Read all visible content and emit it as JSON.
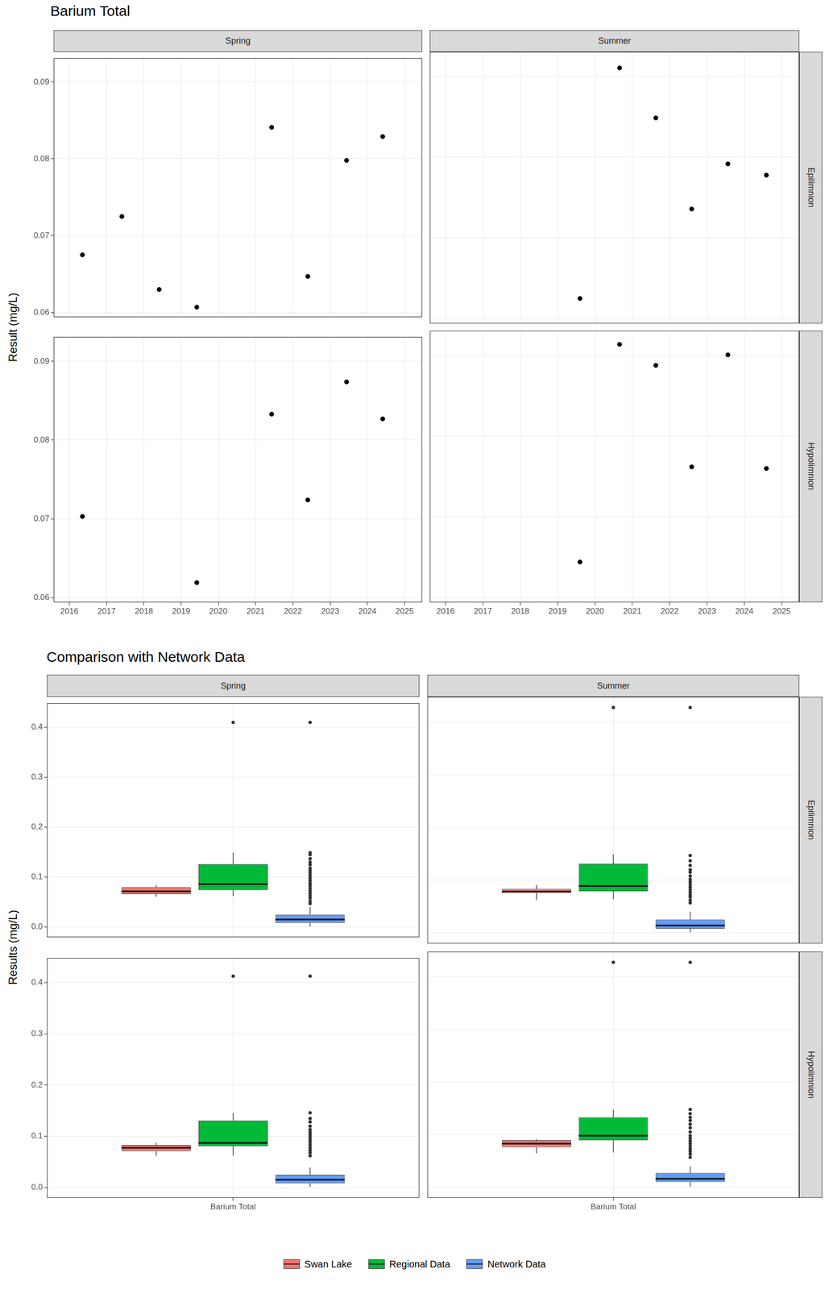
{
  "chart_data": [
    {
      "type": "scatter",
      "title": "Barium Total",
      "y_label": "Result (mg/L)",
      "color": "#000000",
      "grid": true,
      "xlim": [
        2015.58,
        2025.47
      ],
      "xticks": [
        2016,
        2017,
        2018,
        2019,
        2020,
        2021,
        2022,
        2023,
        2024,
        2025
      ],
      "ylim": [
        0.0594,
        0.0931
      ],
      "yticks": [
        0.06,
        0.07,
        0.08,
        0.09
      ],
      "panels": [
        {
          "column": "Spring",
          "row": "Epilimnion",
          "x": [
            2016.35,
            2017.41,
            2018.41,
            2019.42,
            2021.43,
            2022.4,
            2023.44,
            2024.41
          ],
          "values": [
            0.0675,
            0.0725,
            0.063,
            0.0607,
            0.0841,
            0.0647,
            0.0798,
            0.0829
          ]
        },
        {
          "column": "Summer",
          "row": "Epilimnion",
          "x": [
            2019.6,
            2020.66,
            2021.63,
            2022.59,
            2023.56,
            2024.59
          ],
          "values": [
            0.0625,
            0.0911,
            0.0849,
            0.0736,
            0.0792,
            0.0778
          ]
        },
        {
          "column": "Spring",
          "row": "Hypolimnion",
          "x": [
            2016.35,
            2019.42,
            2021.43,
            2022.4,
            2023.44,
            2024.41
          ],
          "values": [
            0.0703,
            0.0619,
            0.0833,
            0.0724,
            0.0874,
            0.0827
          ]
        },
        {
          "column": "Summer",
          "row": "Hypolimnion",
          "x": [
            2019.6,
            2020.66,
            2021.63,
            2022.59,
            2023.56,
            2024.59
          ],
          "values": [
            0.0644,
            0.0914,
            0.0888,
            0.0762,
            0.0901,
            0.076
          ]
        }
      ]
    },
    {
      "type": "boxplot",
      "title": "Comparison with Network Data",
      "y_label": "Results (mg/L)",
      "grid": true,
      "legend": "bottom",
      "categories": [
        "Barium Total"
      ],
      "ylim": [
        -0.0203,
        0.4484
      ],
      "yticks": [
        {
          "value": 0,
          "label": "0.0"
        },
        0.1,
        0.2,
        0.3,
        0.4
      ],
      "panels": [
        {
          "column": "Spring",
          "row": "Epilimnion",
          "series": [
            {
              "name": "Swan Lake",
              "color": "#F8766D",
              "min": 0.0607,
              "q1": 0.066,
              "median": 0.0715,
              "q3": 0.08,
              "max": 0.0841,
              "outliers": []
            },
            {
              "name": "Regional Data",
              "color": "#00BA38",
              "min": 0.062,
              "q1": 0.074,
              "median": 0.086,
              "q3": 0.126,
              "max": 0.149,
              "outliers": [
                0.41
              ]
            },
            {
              "name": "Network Data",
              "color": "#619CFF",
              "min": 0.001,
              "q1": 0.008,
              "median": 0.015,
              "q3": 0.025,
              "max": 0.04,
              "outliers": [
                0.047,
                0.052,
                0.058,
                0.063,
                0.068,
                0.073,
                0.078,
                0.083,
                0.088,
                0.093,
                0.098,
                0.103,
                0.108,
                0.113,
                0.118,
                0.125,
                0.13,
                0.137,
                0.145,
                0.149,
                0.41
              ]
            }
          ]
        },
        {
          "column": "Summer",
          "row": "Epilimnion",
          "series": [
            {
              "name": "Swan Lake",
              "color": "#F8766D",
              "min": 0.0625,
              "q1": 0.076,
              "median": 0.0785,
              "q3": 0.0835,
              "max": 0.0911,
              "outliers": []
            },
            {
              "name": "Regional Data",
              "color": "#00BA38",
              "min": 0.064,
              "q1": 0.079,
              "median": 0.089,
              "q3": 0.131,
              "max": 0.149,
              "outliers": [
                0.428
              ]
            },
            {
              "name": "Network Data",
              "color": "#619CFF",
              "min": 0.001,
              "q1": 0.008,
              "median": 0.014,
              "q3": 0.025,
              "max": 0.04,
              "outliers": [
                0.057,
                0.062,
                0.068,
                0.072,
                0.077,
                0.082,
                0.087,
                0.092,
                0.097,
                0.102,
                0.108,
                0.115,
                0.12,
                0.128,
                0.137,
                0.147,
                0.428
              ]
            }
          ]
        },
        {
          "column": "Spring",
          "row": "Hypolimnion",
          "series": [
            {
              "name": "Swan Lake",
              "color": "#F8766D",
              "min": 0.0619,
              "q1": 0.071,
              "median": 0.0775,
              "q3": 0.083,
              "max": 0.0874,
              "outliers": []
            },
            {
              "name": "Regional Data",
              "color": "#00BA38",
              "min": 0.062,
              "q1": 0.081,
              "median": 0.087,
              "q3": 0.131,
              "max": 0.146,
              "outliers": [
                0.413
              ]
            },
            {
              "name": "Network Data",
              "color": "#619CFF",
              "min": 0.001,
              "q1": 0.008,
              "median": 0.015,
              "q3": 0.025,
              "max": 0.039,
              "outliers": [
                0.062,
                0.068,
                0.073,
                0.078,
                0.083,
                0.088,
                0.093,
                0.098,
                0.103,
                0.108,
                0.113,
                0.12,
                0.128,
                0.135,
                0.146,
                0.413
              ]
            }
          ]
        },
        {
          "column": "Summer",
          "row": "Hypolimnion",
          "series": [
            {
              "name": "Swan Lake",
              "color": "#F8766D",
              "min": 0.0644,
              "q1": 0.076,
              "median": 0.083,
              "q3": 0.0895,
              "max": 0.0914,
              "outliers": []
            },
            {
              "name": "Regional Data",
              "color": "#00BA38",
              "min": 0.066,
              "q1": 0.089,
              "median": 0.098,
              "q3": 0.133,
              "max": 0.148,
              "outliers": [
                0.428
              ]
            },
            {
              "name": "Network Data",
              "color": "#619CFF",
              "min": 0.001,
              "q1": 0.01,
              "median": 0.016,
              "q3": 0.027,
              "max": 0.04,
              "outliers": [
                0.057,
                0.063,
                0.068,
                0.073,
                0.078,
                0.083,
                0.088,
                0.093,
                0.098,
                0.105,
                0.113,
                0.12,
                0.127,
                0.133,
                0.14,
                0.148,
                0.428
              ]
            }
          ]
        }
      ]
    }
  ]
}
